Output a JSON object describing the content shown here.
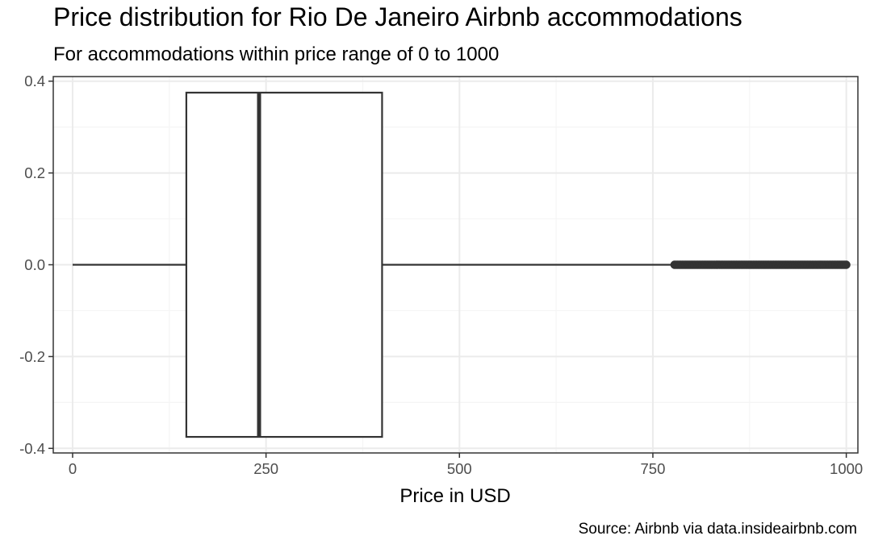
{
  "chart_data": {
    "type": "box",
    "title": "Price distribution for Rio De Janeiro Airbnb accommodations",
    "subtitle": "For accommodations within price range of 0 to 1000",
    "xlabel": "Price in USD",
    "ylabel": "",
    "caption": "Source: Airbnb via data.insideairbnb.com",
    "xlim": [
      -25,
      1015
    ],
    "ylim": [
      -0.41,
      0.41
    ],
    "x_ticks": [
      0,
      250,
      500,
      750,
      1000
    ],
    "x_tick_labels": [
      "0",
      "250",
      "500",
      "750",
      "1000"
    ],
    "y_ticks": [
      -0.4,
      -0.2,
      0.0,
      0.2,
      0.4
    ],
    "y_tick_labels": [
      "-0.4",
      "-0.2",
      "0.0",
      "0.2",
      "0.4"
    ],
    "grid": true,
    "box": {
      "whisker_low": 0,
      "q1": 147,
      "median": 241,
      "q3": 400,
      "whisker_high": 778,
      "y_center": 0.0,
      "half_width": 0.375,
      "outlier_range": [
        778,
        1000
      ]
    },
    "colors": {
      "panel_border": "#333333",
      "grid_major": "#ebebeb",
      "grid_minor": "#f5f5f5",
      "box_line": "#333333",
      "tick_text": "#4d4d4d"
    }
  }
}
